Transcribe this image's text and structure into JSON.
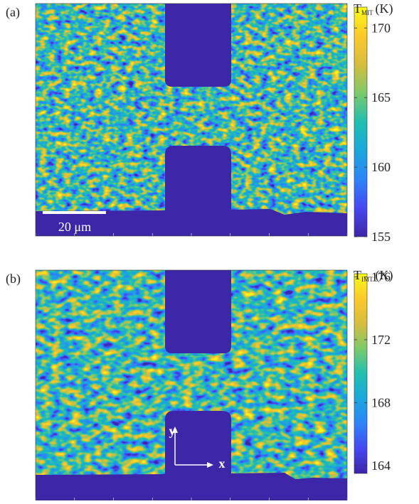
{
  "chart_data": [
    {
      "type": "heatmap",
      "panel_label": "(a)",
      "colorbar_symbol": "T",
      "colorbar_subscript": "MIT",
      "colorbar_unit": "(K)",
      "clim": [
        155,
        171.5
      ],
      "cticks": [
        155,
        160,
        165,
        170
      ],
      "scale_bar_label": "20 μm",
      "colormap": [
        "#3e26a8",
        "#4648f1",
        "#2e84f8",
        "#1ba7dc",
        "#20bfb0",
        "#7dc96c",
        "#d6bd3d",
        "#fbc92c",
        "#f9fb15"
      ]
    },
    {
      "type": "heatmap",
      "panel_label": "(b)",
      "colorbar_symbol": "T",
      "colorbar_subscript": "IMT",
      "colorbar_unit": "(K)",
      "clim": [
        163.5,
        176.2
      ],
      "cticks": [
        164,
        168,
        172,
        176
      ],
      "x_arrow_label": "x",
      "y_arrow_label": "y",
      "colormap": [
        "#3e26a8",
        "#4648f1",
        "#2e84f8",
        "#1ba7dc",
        "#20bfb0",
        "#7dc96c",
        "#d6bd3d",
        "#fbc92c",
        "#f9fb15"
      ]
    }
  ]
}
